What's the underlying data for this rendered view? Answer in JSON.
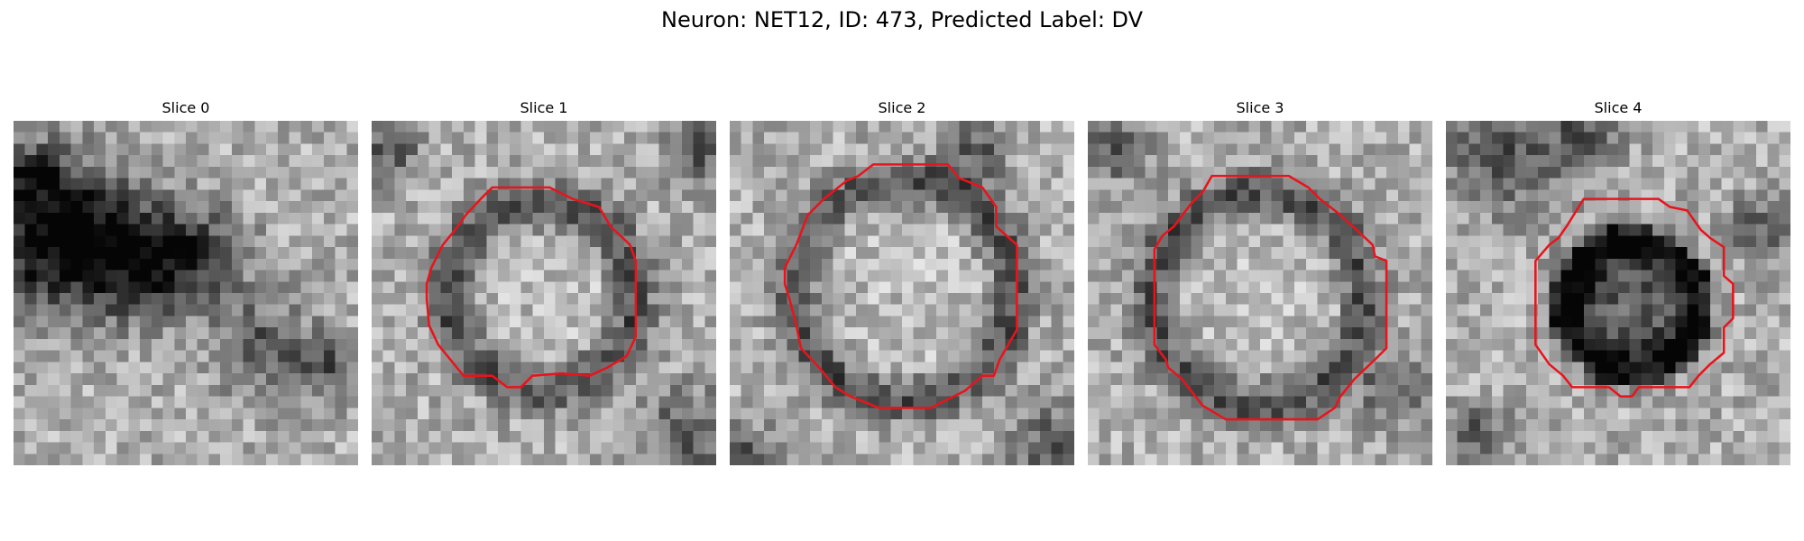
{
  "figure": {
    "title": "Neuron: NET12, ID: 473, Predicted Label: DV",
    "contour_color": "#e8141c",
    "grid_size": 30
  },
  "slices": [
    {
      "label": "Slice 0",
      "seed": 11,
      "has_contour": false,
      "ring": null,
      "dark_blobs": [
        [
          1,
          10,
          5
        ],
        [
          4,
          9,
          4
        ],
        [
          8,
          11,
          4
        ],
        [
          12,
          12,
          3
        ],
        [
          16,
          11,
          3
        ],
        [
          21,
          19,
          3
        ],
        [
          27,
          21,
          2
        ],
        [
          1,
          4,
          2
        ]
      ]
    },
    {
      "label": "Slice 1",
      "seed": 23,
      "has_contour": true,
      "ring": [
        14.8,
        15.2,
        8.2
      ],
      "dark_blobs": [
        [
          27,
          27,
          3
        ],
        [
          28,
          2,
          2
        ],
        [
          1,
          2,
          2
        ]
      ],
      "contour": [
        [
          10.5,
          5.8
        ],
        [
          15.5,
          5.8
        ],
        [
          17.5,
          6.8
        ],
        [
          19.8,
          7.5
        ],
        [
          20.8,
          9.2
        ],
        [
          22.5,
          10.8
        ],
        [
          23,
          12.2
        ],
        [
          23,
          18.8
        ],
        [
          22.2,
          20.5
        ],
        [
          20.5,
          21.5
        ],
        [
          19,
          22.2
        ],
        [
          16.5,
          22
        ],
        [
          14,
          22.2
        ],
        [
          13,
          23.2
        ],
        [
          11.8,
          23.2
        ],
        [
          10.5,
          22.2
        ],
        [
          8,
          22.2
        ],
        [
          5.8,
          19.5
        ],
        [
          5,
          17.8
        ],
        [
          4.8,
          15.5
        ],
        [
          4.8,
          14.2
        ],
        [
          5.2,
          12.8
        ],
        [
          6.2,
          10.8
        ],
        [
          7.5,
          9.2
        ],
        [
          8.2,
          8.2
        ],
        [
          9.5,
          6.8
        ]
      ]
    },
    {
      "label": "Slice 2",
      "seed": 37,
      "has_contour": true,
      "ring": [
        15.2,
        14.8,
        9.6
      ],
      "dark_blobs": [
        [
          28,
          28,
          3
        ],
        [
          1,
          29,
          2
        ],
        [
          21,
          2,
          2
        ]
      ],
      "contour": [
        [
          12.5,
          3.8
        ],
        [
          19,
          3.8
        ],
        [
          20,
          5
        ],
        [
          22,
          5.8
        ],
        [
          23.2,
          7.5
        ],
        [
          23.2,
          9.2
        ],
        [
          25,
          10.8
        ],
        [
          25,
          18.2
        ],
        [
          23.5,
          20.8
        ],
        [
          23,
          22.2
        ],
        [
          22,
          22.2
        ],
        [
          20.5,
          23.5
        ],
        [
          17.5,
          25
        ],
        [
          15,
          25
        ],
        [
          13,
          25
        ],
        [
          10.5,
          24
        ],
        [
          9.2,
          23.2
        ],
        [
          7.8,
          21.5
        ],
        [
          6.2,
          19.8
        ],
        [
          5.8,
          17.8
        ],
        [
          5.2,
          15.5
        ],
        [
          4.8,
          14.2
        ],
        [
          4.8,
          12.8
        ],
        [
          5.8,
          10.8
        ],
        [
          6.8,
          8.2
        ],
        [
          8.2,
          6.8
        ],
        [
          10.2,
          5.2
        ],
        [
          11.2,
          4.8
        ]
      ]
    },
    {
      "label": "Slice 3",
      "seed": 59,
      "has_contour": true,
      "ring": [
        14.8,
        15.5,
        9.3
      ],
      "dark_blobs": [
        [
          26,
          23,
          2
        ],
        [
          2,
          2,
          2
        ]
      ],
      "contour": [
        [
          10.8,
          4.8
        ],
        [
          17.5,
          4.8
        ],
        [
          19.2,
          5.8
        ],
        [
          20.2,
          6.8
        ],
        [
          22,
          8.2
        ],
        [
          24.8,
          10.8
        ],
        [
          25,
          11.8
        ],
        [
          26,
          12.2
        ],
        [
          26,
          19.8
        ],
        [
          25,
          20.8
        ],
        [
          23.2,
          22.5
        ],
        [
          22,
          24
        ],
        [
          21.5,
          25
        ],
        [
          20,
          26
        ],
        [
          12,
          26
        ],
        [
          10,
          24.8
        ],
        [
          8.2,
          22.5
        ],
        [
          7,
          21.5
        ],
        [
          6.8,
          20.8
        ],
        [
          5.8,
          19.5
        ],
        [
          5.8,
          11.2
        ],
        [
          6.5,
          10
        ],
        [
          7.5,
          9.2
        ],
        [
          9,
          7.2
        ],
        [
          10,
          6.2
        ]
      ]
    },
    {
      "label": "Slice 4",
      "seed": 71,
      "has_contour": true,
      "ring": [
        16.2,
        16.2,
        5.5
      ],
      "interior_dark": true,
      "dark_blobs": [
        [
          5,
          2,
          4
        ],
        [
          12,
          1,
          2
        ],
        [
          27,
          9,
          2
        ],
        [
          2,
          27,
          2
        ]
      ],
      "contour": [
        [
          12,
          6.8
        ],
        [
          18.5,
          6.8
        ],
        [
          19.5,
          7.5
        ],
        [
          21,
          7.8
        ],
        [
          22.2,
          9.5
        ],
        [
          23,
          10.2
        ],
        [
          24.2,
          11
        ],
        [
          24.2,
          13.5
        ],
        [
          25,
          14.2
        ],
        [
          25,
          17.2
        ],
        [
          24.2,
          18
        ],
        [
          24.2,
          20.2
        ],
        [
          23,
          21.2
        ],
        [
          22,
          22.2
        ],
        [
          21.2,
          23.2
        ],
        [
          16.8,
          23.2
        ],
        [
          16.2,
          24
        ],
        [
          15.2,
          24
        ],
        [
          14.2,
          23.2
        ],
        [
          11,
          23.2
        ],
        [
          10.2,
          22.2
        ],
        [
          9,
          21.2
        ],
        [
          7.8,
          19.5
        ],
        [
          7.8,
          12.2
        ],
        [
          9,
          10.8
        ],
        [
          9.8,
          10.2
        ],
        [
          10.5,
          9.2
        ]
      ]
    }
  ]
}
